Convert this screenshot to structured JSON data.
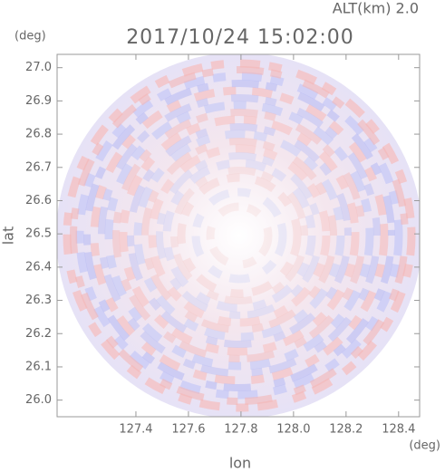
{
  "chart_data": {
    "type": "radar-ppi",
    "title": "2017/10/24 15:02:00",
    "subtitle": "ALT(km) 2.0",
    "x_label": "lon",
    "y_label": "lat",
    "x_unit": "(deg)",
    "y_unit": "(deg)",
    "xlim": [
      127.1,
      128.48
    ],
    "ylim": [
      25.95,
      27.04
    ],
    "xticks": [
      127.4,
      127.6,
      127.8,
      {
        "value": 128,
        "label": "128.0"
      },
      128.2,
      128.4
    ],
    "yticks": [
      {
        "value": 26,
        "label": "26.0"
      },
      26.1,
      26.2,
      26.3,
      26.4,
      26.5,
      26.6,
      26.7,
      26.8,
      26.9,
      {
        "value": 27,
        "label": "27.0"
      }
    ]
  }
}
